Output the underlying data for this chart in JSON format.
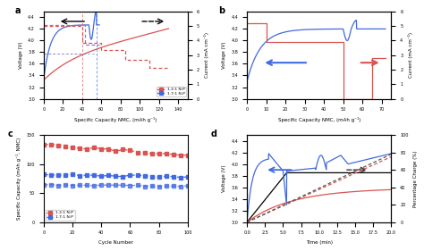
{
  "fig_width": 4.74,
  "fig_height": 2.81,
  "dpi": 100,
  "colors": {
    "red": "#d9534f",
    "blue": "#4169E1",
    "purple": "#9370DB",
    "black": "black",
    "gray": "#888888"
  },
  "panel_a": {
    "label": "a",
    "xlabel": "Specific Capacity NMC, (mAh g⁻¹)",
    "ylabel_left": "Voltage (V)",
    "ylabel_right": "Current (mA cm⁻²)",
    "xlim": [
      0,
      150
    ],
    "ylim_left": [
      3.0,
      4.5
    ],
    "ylim_right": [
      0.0,
      6.0
    ],
    "legend": [
      "1.2:1 N:P",
      "1.7:1 N:P"
    ]
  },
  "panel_b": {
    "label": "b",
    "xlabel": "Specific Capacity NMC, (mAh g⁻¹)",
    "ylabel_left": "Voltage (V)",
    "ylabel_right": "Current (mA cm⁻²)",
    "xlim": [
      0,
      75
    ],
    "ylim_left": [
      3.0,
      4.5
    ],
    "ylim_right": [
      0.0,
      6.0
    ]
  },
  "panel_c": {
    "label": "c",
    "xlabel": "Cycle Number",
    "ylabel": "Specific Capacity (mAh g⁻¹, NMC)",
    "xlim": [
      0,
      100
    ],
    "ylim": [
      0.0,
      150.0
    ],
    "legend": [
      "1.2:1 N:P",
      "1.7:1 N:P"
    ]
  },
  "panel_d": {
    "label": "d",
    "xlabel": "Time (min)",
    "ylabel_left": "Voltage (V)",
    "ylabel_right": "Percentage Charge (%)",
    "xlim": [
      0,
      20
    ],
    "ylim_left": [
      3.0,
      4.5
    ],
    "ylim_right": [
      0.0,
      100.0
    ]
  }
}
